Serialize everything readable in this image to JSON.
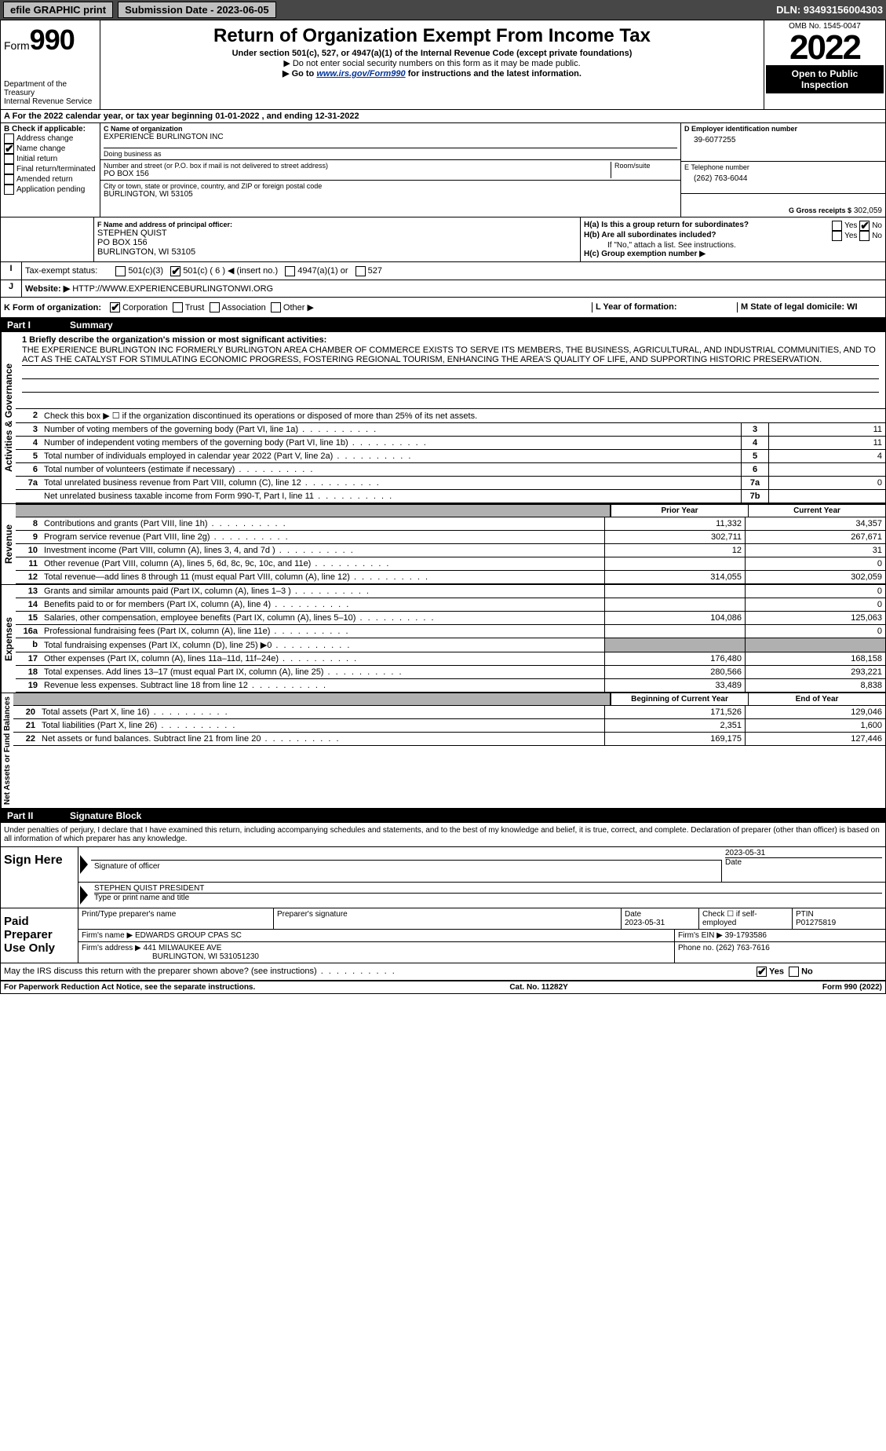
{
  "topbar": {
    "efile": "efile GRAPHIC print",
    "submission": "Submission Date - 2023-06-05",
    "dln": "DLN: 93493156004303"
  },
  "header": {
    "form_label": "Form",
    "form_num": "990",
    "dept": "Department of the Treasury",
    "irs": "Internal Revenue Service",
    "title": "Return of Organization Exempt From Income Tax",
    "subtitle": "Under section 501(c), 527, or 4947(a)(1) of the Internal Revenue Code (except private foundations)",
    "note1": "▶ Do not enter social security numbers on this form as it may be made public.",
    "note2_pre": "▶ Go to ",
    "note2_link": "www.irs.gov/Form990",
    "note2_post": " for instructions and the latest information.",
    "omb": "OMB No. 1545-0047",
    "year": "2022",
    "open": "Open to Public Inspection"
  },
  "section_a": "For the 2022 calendar year, or tax year beginning 01-01-2022    , and ending 12-31-2022",
  "col_b": {
    "title": "B Check if applicable:",
    "items": [
      "Address change",
      "Name change",
      "Initial return",
      "Final return/terminated",
      "Amended return",
      "Application pending"
    ],
    "checked_idx": 1
  },
  "col_c": {
    "name_label": "C Name of organization",
    "name": "EXPERIENCE BURLINGTON INC",
    "dba_label": "Doing business as",
    "dba": "",
    "addr_label": "Number and street (or P.O. box if mail is not delivered to street address)",
    "room_label": "Room/suite",
    "addr": "PO BOX 156",
    "city_label": "City or town, state or province, country, and ZIP or foreign postal code",
    "city": "BURLINGTON, WI  53105",
    "f_label": "F Name and address of principal officer:",
    "f_name": "STEPHEN QUIST",
    "f_addr1": "PO BOX 156",
    "f_addr2": "BURLINGTON, WI  53105"
  },
  "col_d": {
    "d_label": "D Employer identification number",
    "ein": "39-6077255",
    "e_label": "E Telephone number",
    "phone": "(262) 763-6044",
    "g_label": "G Gross receipts $",
    "gross": "302,059"
  },
  "row_i": {
    "label": "I",
    "tax_exempt": "Tax-exempt status:",
    "opts": [
      "501(c)(3)",
      "501(c) ( 6 ) ◀ (insert no.)",
      "4947(a)(1) or",
      "527"
    ],
    "checked_idx": 1
  },
  "row_h": {
    "ha": "H(a)  Is this a group return for subordinates?",
    "hb": "H(b)  Are all subordinates included?",
    "hb_note": "If \"No,\" attach a list. See instructions.",
    "hc": "H(c)  Group exemption number ▶",
    "yes": "Yes",
    "no": "No"
  },
  "row_j": {
    "label": "J",
    "website_label": "Website: ▶",
    "website": "HTTP://WWW.EXPERIENCEBURLINGTONWI.ORG"
  },
  "row_k": {
    "label": "K Form of organization:",
    "opts": [
      "Corporation",
      "Trust",
      "Association",
      "Other ▶"
    ],
    "checked_idx": 0,
    "l_label": "L Year of formation:",
    "l_val": "",
    "m_label": "M State of legal domicile: WI"
  },
  "part1": {
    "title": "Part I",
    "name": "Summary",
    "mission_label": "1 Briefly describe the organization's mission or most significant activities:",
    "mission": "THE EXPERIENCE BURLINGTON INC FORMERLY BURLINGTON AREA CHAMBER OF COMMERCE EXISTS TO SERVE ITS MEMBERS, THE BUSINESS, AGRICULTURAL, AND INDUSTRIAL COMMUNITIES, AND TO ACT AS THE CATALYST FOR STIMULATING ECONOMIC PROGRESS, FOSTERING REGIONAL TOURISM, ENHANCING THE AREA'S QUALITY OF LIFE, AND SUPPORTING HISTORIC PRESERVATION.",
    "line2": "Check this box ▶ ☐  if the organization discontinued its operations or disposed of more than 25% of its net assets.",
    "gov_label": "Activities & Governance",
    "rev_label": "Revenue",
    "exp_label": "Expenses",
    "net_label": "Net Assets or Fund Balances",
    "rows_gov": [
      {
        "n": "3",
        "d": "Number of voting members of the governing body (Part VI, line 1a)",
        "b": "3",
        "v": "11"
      },
      {
        "n": "4",
        "d": "Number of independent voting members of the governing body (Part VI, line 1b)",
        "b": "4",
        "v": "11"
      },
      {
        "n": "5",
        "d": "Total number of individuals employed in calendar year 2022 (Part V, line 2a)",
        "b": "5",
        "v": "4"
      },
      {
        "n": "6",
        "d": "Total number of volunteers (estimate if necessary)",
        "b": "6",
        "v": ""
      },
      {
        "n": "7a",
        "d": "Total unrelated business revenue from Part VIII, column (C), line 12",
        "b": "7a",
        "v": "0"
      },
      {
        "n": "",
        "d": "Net unrelated business taxable income from Form 990-T, Part I, line 11",
        "b": "7b",
        "v": ""
      }
    ],
    "hdr_prior": "Prior Year",
    "hdr_current": "Current Year",
    "rows_rev": [
      {
        "n": "8",
        "d": "Contributions and grants (Part VIII, line 1h)",
        "p": "11,332",
        "c": "34,357"
      },
      {
        "n": "9",
        "d": "Program service revenue (Part VIII, line 2g)",
        "p": "302,711",
        "c": "267,671"
      },
      {
        "n": "10",
        "d": "Investment income (Part VIII, column (A), lines 3, 4, and 7d )",
        "p": "12",
        "c": "31"
      },
      {
        "n": "11",
        "d": "Other revenue (Part VIII, column (A), lines 5, 6d, 8c, 9c, 10c, and 11e)",
        "p": "",
        "c": "0"
      },
      {
        "n": "12",
        "d": "Total revenue—add lines 8 through 11 (must equal Part VIII, column (A), line 12)",
        "p": "314,055",
        "c": "302,059"
      }
    ],
    "rows_exp": [
      {
        "n": "13",
        "d": "Grants and similar amounts paid (Part IX, column (A), lines 1–3 )",
        "p": "",
        "c": "0"
      },
      {
        "n": "14",
        "d": "Benefits paid to or for members (Part IX, column (A), line 4)",
        "p": "",
        "c": "0"
      },
      {
        "n": "15",
        "d": "Salaries, other compensation, employee benefits (Part IX, column (A), lines 5–10)",
        "p": "104,086",
        "c": "125,063"
      },
      {
        "n": "16a",
        "d": "Professional fundraising fees (Part IX, column (A), line 11e)",
        "p": "",
        "c": "0"
      },
      {
        "n": "b",
        "d": "Total fundraising expenses (Part IX, column (D), line 25) ▶0",
        "p": "SHADE",
        "c": "SHADE"
      },
      {
        "n": "17",
        "d": "Other expenses (Part IX, column (A), lines 11a–11d, 11f–24e)",
        "p": "176,480",
        "c": "168,158"
      },
      {
        "n": "18",
        "d": "Total expenses. Add lines 13–17 (must equal Part IX, column (A), line 25)",
        "p": "280,566",
        "c": "293,221"
      },
      {
        "n": "19",
        "d": "Revenue less expenses. Subtract line 18 from line 12",
        "p": "33,489",
        "c": "8,838"
      }
    ],
    "hdr_begin": "Beginning of Current Year",
    "hdr_end": "End of Year",
    "rows_net": [
      {
        "n": "20",
        "d": "Total assets (Part X, line 16)",
        "p": "171,526",
        "c": "129,046"
      },
      {
        "n": "21",
        "d": "Total liabilities (Part X, line 26)",
        "p": "2,351",
        "c": "1,600"
      },
      {
        "n": "22",
        "d": "Net assets or fund balances. Subtract line 21 from line 20",
        "p": "169,175",
        "c": "127,446"
      }
    ]
  },
  "part2": {
    "title": "Part II",
    "name": "Signature Block",
    "penalty": "Under penalties of perjury, I declare that I have examined this return, including accompanying schedules and statements, and to the best of my knowledge and belief, it is true, correct, and complete. Declaration of preparer (other than officer) is based on all information of which preparer has any knowledge.",
    "sign_here": "Sign Here",
    "sig_officer": "Signature of officer",
    "sig_date": "2023-05-31",
    "date_label": "Date",
    "officer_name": "STEPHEN QUIST PRESIDENT",
    "type_name": "Type or print name and title",
    "paid": "Paid Preparer Use Only",
    "prep_name_label": "Print/Type preparer's name",
    "prep_sig_label": "Preparer's signature",
    "prep_date": "2023-05-31",
    "check_self": "Check ☐ if self-employed",
    "ptin_label": "PTIN",
    "ptin": "P01275819",
    "firm_name_label": "Firm's name    ▶",
    "firm_name": "EDWARDS GROUP CPAS SC",
    "firm_ein_label": "Firm's EIN ▶",
    "firm_ein": "39-1793586",
    "firm_addr_label": "Firm's address ▶",
    "firm_addr1": "441 MILWAUKEE AVE",
    "firm_addr2": "BURLINGTON, WI  531051230",
    "firm_phone_label": "Phone no.",
    "firm_phone": "(262) 763-7616",
    "may_irs": "May the IRS discuss this return with the preparer shown above? (see instructions)",
    "yes": "Yes",
    "no": "No"
  },
  "footer": {
    "left": "For Paperwork Reduction Act Notice, see the separate instructions.",
    "mid": "Cat. No. 11282Y",
    "right": "Form 990 (2022)"
  }
}
